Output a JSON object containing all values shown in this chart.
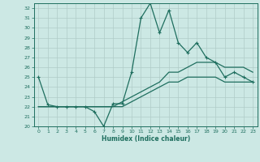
{
  "xlabel": "Humidex (Indice chaleur)",
  "xlim": [
    -0.5,
    23.5
  ],
  "ylim": [
    20,
    32.5
  ],
  "yticks": [
    20,
    21,
    22,
    23,
    24,
    25,
    26,
    27,
    28,
    29,
    30,
    31,
    32
  ],
  "xticks": [
    0,
    1,
    2,
    3,
    4,
    5,
    6,
    7,
    8,
    9,
    10,
    11,
    12,
    13,
    14,
    15,
    16,
    17,
    18,
    19,
    20,
    21,
    22,
    23
  ],
  "bg_color": "#cce8e4",
  "grid_color": "#b0ccc8",
  "line_color": "#1e6e5e",
  "line1_x": [
    0,
    1,
    2,
    3,
    4,
    5,
    6,
    7,
    8,
    9,
    10,
    11,
    12,
    13,
    14,
    15,
    16,
    17,
    18,
    19,
    20,
    21,
    22,
    23
  ],
  "line1_y": [
    25,
    22.2,
    22,
    22,
    22,
    22,
    21.5,
    20,
    22.3,
    22.3,
    25.5,
    31,
    32.5,
    29.5,
    31.8,
    28.5,
    27.5,
    28.5,
    27,
    26.5,
    25,
    25.5,
    25,
    24.5
  ],
  "line2_x": [
    0,
    1,
    2,
    3,
    4,
    5,
    6,
    7,
    8,
    9,
    10,
    11,
    12,
    13,
    14,
    15,
    16,
    17,
    18,
    19,
    20,
    21,
    22,
    23
  ],
  "line2_y": [
    22,
    22,
    22,
    22,
    22,
    22,
    22,
    22,
    22,
    22.5,
    23,
    23.5,
    24,
    24.5,
    25.5,
    25.5,
    26,
    26.5,
    26.5,
    26.5,
    26,
    26,
    26,
    25.5
  ],
  "line3_x": [
    0,
    1,
    2,
    3,
    4,
    5,
    6,
    7,
    8,
    9,
    10,
    11,
    12,
    13,
    14,
    15,
    16,
    17,
    18,
    19,
    20,
    21,
    22,
    23
  ],
  "line3_y": [
    22,
    22,
    22,
    22,
    22,
    22,
    22,
    22,
    22,
    22,
    22.5,
    23,
    23.5,
    24,
    24.5,
    24.5,
    25,
    25,
    25,
    25,
    24.5,
    24.5,
    24.5,
    24.5
  ]
}
